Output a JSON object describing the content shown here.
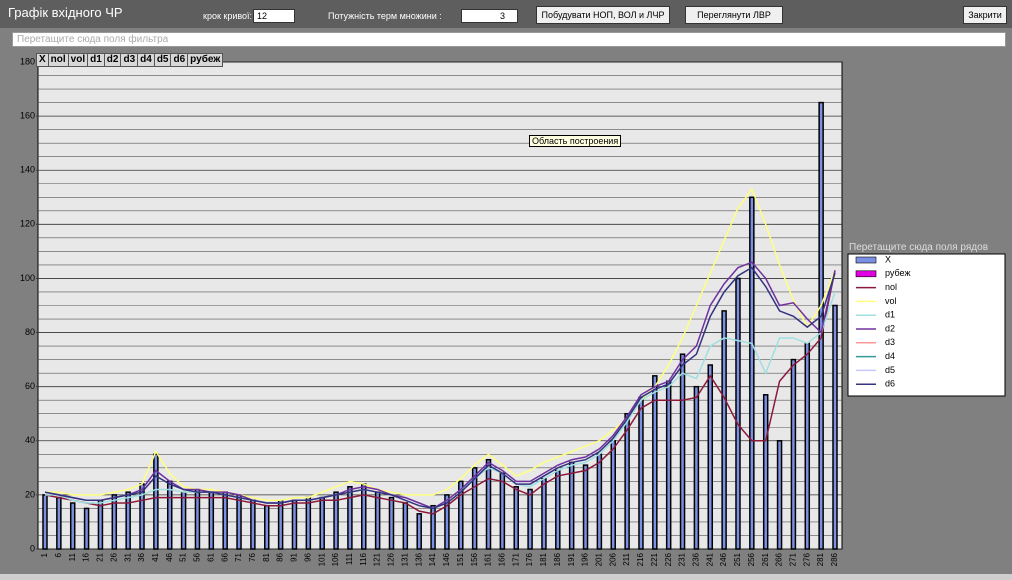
{
  "window": {
    "title": "Графік вхідного ЧР",
    "step_label": "крок кривої:",
    "step_value": "12",
    "power_label": "Потужність терм множини :",
    "power_value": "3",
    "buttons": [
      "Побудувати НОП, ВОЛ и ЛЧР",
      "Переглянути ЛВР",
      "Закрити"
    ],
    "filter_hint": "Перетащите сюда поля фильтра",
    "fields": [
      "X",
      "nol",
      "vol",
      "d1",
      "d2",
      "d3",
      "d4",
      "d5",
      "d6",
      "рубеж"
    ],
    "plot_tooltip": "Область построения",
    "legend_hint": "Перетащите сюда поля рядов"
  },
  "chart_data": {
    "type": "bar",
    "categories": [
      "1",
      "6",
      "11",
      "16",
      "21",
      "26",
      "31",
      "36",
      "41",
      "46",
      "51",
      "56",
      "61",
      "66",
      "71",
      "76",
      "81",
      "86",
      "91",
      "96",
      "101",
      "106",
      "111",
      "116",
      "121",
      "126",
      "131",
      "136",
      "141",
      "146",
      "151",
      "156",
      "161",
      "166",
      "171",
      "176",
      "181",
      "186",
      "191",
      "196",
      "201",
      "206",
      "211",
      "216",
      "221",
      "226",
      "231",
      "236",
      "241",
      "246",
      "251",
      "256",
      "261",
      "266",
      "271",
      "276",
      "281",
      "286"
    ],
    "series": [
      {
        "name": "X",
        "kind": "bar",
        "color": "#7b8fe3",
        "values": [
          20,
          19,
          17,
          15,
          18,
          20,
          21,
          24,
          35,
          25,
          21,
          22,
          21,
          21,
          20,
          18,
          16,
          18,
          18,
          19,
          19,
          21,
          23,
          24,
          21,
          19,
          17,
          13,
          16,
          20,
          25,
          30,
          33,
          28,
          23,
          22,
          26,
          29,
          32,
          31,
          35,
          40,
          50,
          56,
          64,
          62,
          72,
          60,
          68,
          88,
          100,
          130,
          57,
          40,
          70,
          76,
          165,
          90
        ]
      },
      {
        "name": "рубеж",
        "kind": "bar",
        "color": "#e000e0",
        "values": [
          null,
          null,
          null,
          null,
          null,
          null,
          null,
          null,
          null,
          null,
          null,
          null,
          null,
          null,
          null,
          null,
          null,
          null,
          null,
          null,
          null,
          null,
          null,
          null,
          null,
          null,
          null,
          null,
          null,
          null,
          null,
          null,
          null,
          null,
          null,
          null,
          null,
          null,
          null,
          null,
          null,
          null,
          null,
          null,
          null,
          null,
          null,
          null,
          null,
          null,
          null,
          null,
          null,
          null,
          null,
          null,
          null,
          null
        ]
      },
      {
        "name": "nol",
        "kind": "line",
        "color": "#8b1a3a",
        "values": [
          20,
          19,
          18,
          17,
          16,
          17,
          17,
          18,
          19,
          19,
          19,
          19,
          19,
          19,
          18,
          17,
          16,
          16,
          17,
          17,
          18,
          18,
          19,
          20,
          19,
          18,
          17,
          14,
          13,
          16,
          20,
          23,
          26,
          25,
          22,
          20,
          24,
          27,
          28,
          29,
          32,
          37,
          44,
          52,
          55,
          55,
          55,
          56,
          64,
          56,
          46,
          40,
          40,
          62,
          68,
          72,
          78,
          103
        ]
      },
      {
        "name": "vol",
        "kind": "line",
        "color": "#ffff80",
        "values": [
          21,
          21,
          20,
          20,
          20,
          21,
          22,
          24,
          36,
          28,
          23,
          22,
          22,
          21,
          20,
          19,
          18,
          18,
          19,
          19,
          21,
          23,
          25,
          24,
          22,
          21,
          20,
          20,
          20,
          22,
          26,
          31,
          35,
          31,
          27,
          29,
          32,
          34,
          36,
          38,
          40,
          44,
          48,
          55,
          60,
          68,
          78,
          90,
          102,
          114,
          126,
          133,
          120,
          105,
          92,
          82,
          90,
          103
        ]
      },
      {
        "name": "d1",
        "kind": "line",
        "color": "#a0e0e0",
        "values": [
          20,
          20,
          18,
          17,
          17,
          18,
          19,
          20,
          22,
          22,
          21,
          21,
          21,
          20,
          19,
          18,
          17,
          17,
          18,
          18,
          19,
          20,
          21,
          22,
          21,
          20,
          19,
          17,
          15,
          18,
          22,
          26,
          30,
          28,
          24,
          23,
          26,
          29,
          31,
          32,
          35,
          40,
          47,
          55,
          58,
          60,
          65,
          63,
          75,
          78,
          77,
          76,
          65,
          78,
          78,
          76,
          80,
          95
        ]
      },
      {
        "name": "d2",
        "kind": "line",
        "color": "#7030a0",
        "values": [
          21,
          20,
          19,
          18,
          18,
          19,
          20,
          22,
          29,
          25,
          22,
          22,
          21,
          21,
          20,
          18,
          17,
          17,
          18,
          18,
          19,
          20,
          22,
          23,
          22,
          20,
          19,
          17,
          15,
          18,
          22,
          27,
          32,
          29,
          25,
          25,
          28,
          31,
          33,
          34,
          37,
          42,
          49,
          57,
          60,
          62,
          70,
          75,
          90,
          98,
          104,
          106,
          100,
          90,
          91,
          85,
          80,
          103
        ]
      },
      {
        "name": "d3",
        "kind": "line",
        "color": "#ff9999",
        "values": [
          null,
          null,
          null,
          null,
          null,
          null,
          null,
          null,
          null,
          null,
          null,
          null,
          null,
          null,
          null,
          null,
          null,
          null,
          null,
          null,
          null,
          null,
          null,
          null,
          null,
          null,
          null,
          null,
          null,
          null,
          null,
          null,
          null,
          null,
          null,
          null,
          null,
          null,
          null,
          null,
          null,
          null,
          null,
          null,
          null,
          null,
          null,
          null,
          null,
          null,
          null,
          null,
          null,
          null,
          null,
          null,
          null,
          null
        ]
      },
      {
        "name": "d4",
        "kind": "line",
        "color": "#339999",
        "values": [
          null,
          null,
          null,
          null,
          null,
          null,
          null,
          null,
          null,
          null,
          null,
          null,
          null,
          null,
          null,
          null,
          null,
          null,
          null,
          null,
          null,
          null,
          null,
          null,
          null,
          null,
          null,
          null,
          null,
          null,
          null,
          null,
          null,
          null,
          null,
          null,
          null,
          null,
          null,
          null,
          null,
          null,
          null,
          null,
          null,
          null,
          null,
          null,
          null,
          null,
          null,
          null,
          null,
          null,
          null,
          null,
          null,
          null
        ]
      },
      {
        "name": "d5",
        "kind": "line",
        "color": "#c8c8ff",
        "values": [
          null,
          null,
          null,
          null,
          null,
          null,
          null,
          null,
          null,
          null,
          null,
          null,
          null,
          null,
          null,
          null,
          null,
          null,
          null,
          null,
          null,
          null,
          null,
          null,
          null,
          null,
          null,
          null,
          null,
          null,
          null,
          null,
          null,
          null,
          null,
          null,
          null,
          null,
          null,
          null,
          null,
          null,
          null,
          null,
          null,
          null,
          null,
          null,
          null,
          null,
          null,
          null,
          null,
          null,
          null,
          null,
          null,
          null
        ]
      },
      {
        "name": "d6",
        "kind": "line",
        "color": "#33337f",
        "values": [
          21,
          20,
          19,
          18,
          18,
          19,
          20,
          21,
          27,
          24,
          22,
          21,
          21,
          20,
          19,
          18,
          17,
          17,
          18,
          18,
          19,
          20,
          21,
          22,
          21,
          20,
          18,
          16,
          15,
          17,
          21,
          26,
          31,
          28,
          24,
          24,
          27,
          30,
          32,
          33,
          36,
          41,
          48,
          56,
          59,
          61,
          68,
          72,
          86,
          95,
          101,
          104,
          97,
          88,
          86,
          82,
          86,
          102
        ]
      }
    ],
    "ylim": [
      0,
      180
    ],
    "yticks": [
      0,
      20,
      40,
      60,
      80,
      100,
      120,
      140,
      160,
      180
    ],
    "minor_yticks": [
      5,
      10,
      15,
      25,
      30,
      35,
      45,
      50,
      55,
      65,
      70,
      75,
      85,
      90,
      95,
      105,
      110,
      115,
      125,
      130,
      135,
      145,
      150,
      155,
      165,
      170,
      175
    ],
    "grid": true,
    "legend": "right"
  }
}
